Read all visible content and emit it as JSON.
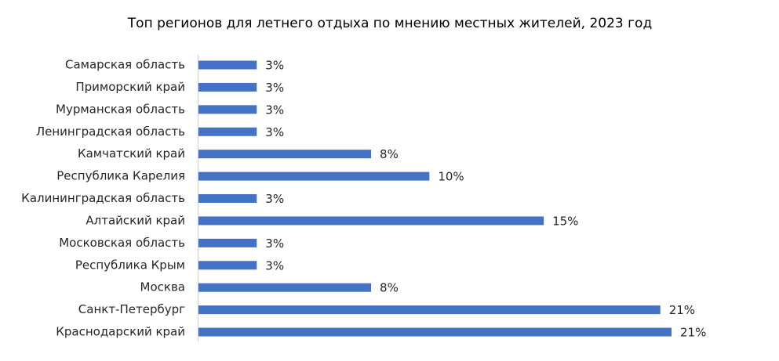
{
  "chart_data": {
    "type": "barh",
    "title": "Топ регионов для летнего отдыха по мнению местных жителей, 2023 год",
    "categories": [
      "Самарская область",
      "Приморский край",
      "Мурманская область",
      "Ленинградская область",
      "Камчатский край",
      "Республика Карелия",
      "Калининградская область",
      "Алтайский край",
      "Московская область",
      "Республика Крым",
      "Москва",
      "Санкт-Петербург",
      "Краснодарский край"
    ],
    "values": [
      2.6,
      2.6,
      2.6,
      2.6,
      7.7,
      10.3,
      2.6,
      15.4,
      2.6,
      2.6,
      7.7,
      20.6,
      21.1
    ],
    "value_labels": [
      "3%",
      "3%",
      "3%",
      "3%",
      "8%",
      "10%",
      "3%",
      "15%",
      "3%",
      "3%",
      "8%",
      "21%",
      "21%"
    ],
    "color": "#4472c4"
  }
}
